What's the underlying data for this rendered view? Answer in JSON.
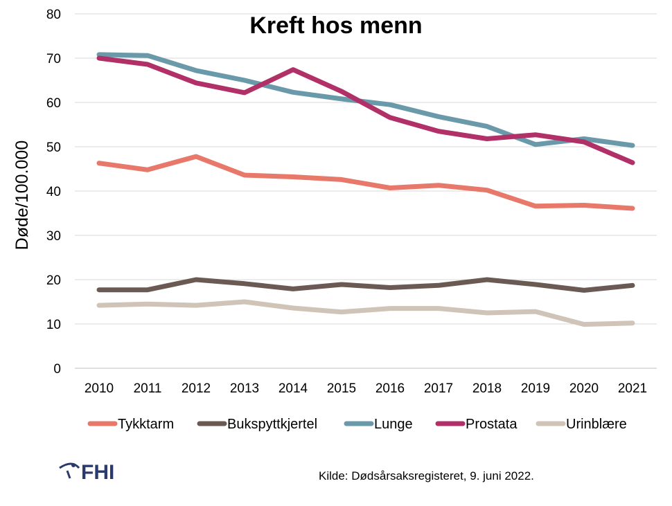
{
  "chart_data": {
    "type": "line",
    "title": "Kreft hos menn",
    "xlabel": "",
    "ylabel": "Døde/100.000",
    "ylim": [
      0,
      80
    ],
    "yticks": [
      0,
      10,
      20,
      30,
      40,
      50,
      60,
      70,
      80
    ],
    "grid": true,
    "legend": "bottom",
    "x": [
      "2010",
      "2011",
      "2012",
      "2013",
      "2014",
      "2015",
      "2016",
      "2017",
      "2018",
      "2019",
      "2020",
      "2021"
    ],
    "series": [
      {
        "name": "Tykktarm",
        "color": "#e8786a",
        "values": [
          46.3,
          44.8,
          47.8,
          43.6,
          43.2,
          42.6,
          40.7,
          41.3,
          40.2,
          36.6,
          36.8,
          36.1
        ]
      },
      {
        "name": "Bukspyttkjertel",
        "color": "#6b5a54",
        "values": [
          17.7,
          17.7,
          20.0,
          19.1,
          17.9,
          18.9,
          18.2,
          18.7,
          20.0,
          18.9,
          17.6,
          18.7
        ]
      },
      {
        "name": "Lunge",
        "color": "#6a9aaa",
        "values": [
          70.8,
          70.6,
          67.2,
          65.0,
          62.3,
          60.8,
          59.5,
          56.8,
          54.6,
          50.5,
          51.8,
          50.3
        ]
      },
      {
        "name": "Prostata",
        "color": "#b03067",
        "values": [
          70.0,
          68.6,
          64.4,
          62.2,
          67.4,
          62.5,
          56.6,
          53.5,
          51.8,
          52.7,
          51.1,
          46.4
        ]
      },
      {
        "name": "Urinblære",
        "color": "#d0c3b8",
        "values": [
          14.2,
          14.5,
          14.2,
          15.0,
          13.6,
          12.7,
          13.5,
          13.5,
          12.5,
          12.8,
          9.9,
          10.2
        ]
      }
    ]
  },
  "footer": {
    "logo": "FHI",
    "source": "Kilde: Dødsårsaksregisteret, 9. juni 2022."
  }
}
